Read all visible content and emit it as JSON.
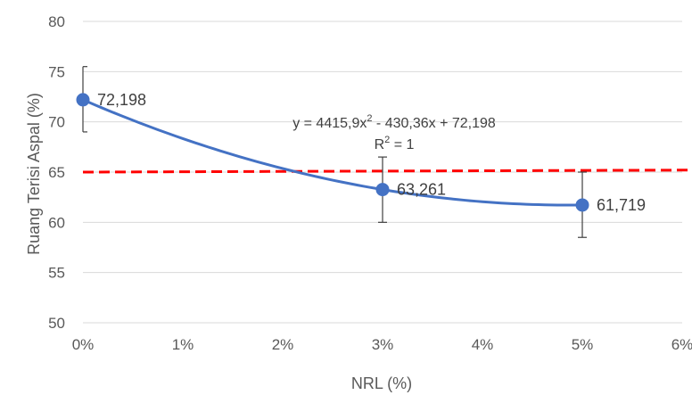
{
  "chart_data": {
    "type": "scatter",
    "xlabel": "NRL (%)",
    "ylabel": "Ruang Terisi Aspal (%)",
    "xlim": [
      0,
      0.06
    ],
    "ylim": [
      50,
      80
    ],
    "x_ticks": [
      "0%",
      "1%",
      "2%",
      "3%",
      "4%",
      "5%",
      "6%"
    ],
    "y_ticks": [
      "50",
      "55",
      "60",
      "65",
      "70",
      "75",
      "80"
    ],
    "grid": true,
    "series": [
      {
        "x": [
          0,
          0.03,
          0.05
        ],
        "values": [
          72.198,
          63.261,
          61.719
        ],
        "labels": [
          "72,198",
          "63,261",
          "61,719"
        ],
        "color": "#4472C4",
        "error_bars": [
          {
            "low": 69.0,
            "high": 75.5
          },
          {
            "low": 60.0,
            "high": 66.5
          },
          {
            "low": 58.5,
            "high": 65.0
          }
        ]
      }
    ],
    "trendline": {
      "type": "polynomial",
      "coefficients": [
        4415.9,
        -430.36,
        72.198
      ],
      "equation_parts": [
        "y = 4415,9x",
        "2",
        " - 430,36x + 72,198"
      ],
      "r2_parts": [
        "R",
        "2",
        " = 1"
      ],
      "color": "#4472C4"
    },
    "reference_line": {
      "y_start": 65.0,
      "y_end": 65.2,
      "color": "#FF0000",
      "style": "dashed"
    }
  }
}
